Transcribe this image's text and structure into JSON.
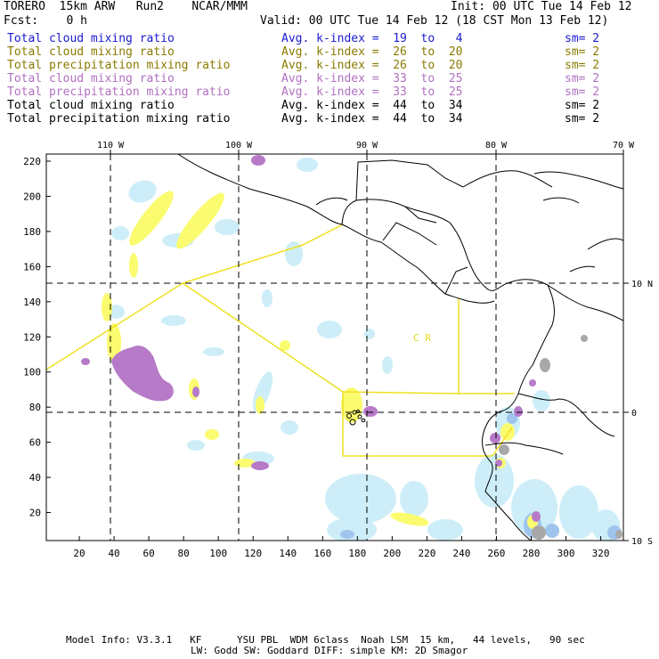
{
  "header": {
    "run_title": "TORERO  15km ARW   Run2    NCAR/MMM",
    "init": "Init: 00 UTC Tue 14 Feb 12",
    "fcst": "Fcst:    0 h",
    "valid": "Valid: 00 UTC Tue 14 Feb 12 (18 CST Mon 13 Feb 12)"
  },
  "legend": [
    {
      "field": "Total cloud mixing ratio",
      "range": "Avg. k-index =  19  to   4",
      "sm": "sm= 2",
      "color": "#1a1ad0"
    },
    {
      "field": "Total cloud mixing ratio",
      "range": "Avg. k-index =  26  to  20",
      "sm": "sm= 2",
      "color": "#8a7a00"
    },
    {
      "field": "Total precipitation mixing ratio",
      "range": "Avg. k-index =  26  to  20",
      "sm": "sm= 2",
      "color": "#8a7a00"
    },
    {
      "field": "Total cloud mixing ratio",
      "range": "Avg. k-index =  33  to  25",
      "sm": "sm= 2",
      "color": "#b070c0"
    },
    {
      "field": "Total precipitation mixing ratio",
      "range": "Avg. k-index =  33  to  25",
      "sm": "sm= 2",
      "color": "#b070c0"
    },
    {
      "field": "Total cloud mixing ratio",
      "range": "Avg. k-index =  44  to  34",
      "sm": "sm= 2",
      "color": "#000000"
    },
    {
      "field": "Total precipitation mixing ratio",
      "range": "Avg. k-index =  44  to  34",
      "sm": "sm= 2",
      "color": "#000000"
    }
  ],
  "map": {
    "top_lon_labels": [
      "110 W",
      "100 W",
      "90 W",
      "80 W",
      "70 W"
    ],
    "right_lat_labels": [
      "10 N",
      "0",
      "10 S"
    ],
    "left_grid_labels": [
      "220",
      "200",
      "180",
      "160",
      "140",
      "120",
      "100",
      "80",
      "60",
      "40",
      "20"
    ],
    "bottom_grid_labels": [
      "20",
      "40",
      "60",
      "80",
      "100",
      "120",
      "140",
      "160",
      "180",
      "200",
      "220",
      "240",
      "260",
      "280",
      "300",
      "320"
    ],
    "region_label": "C R",
    "colors": {
      "light_blue": "#cdeef8",
      "mid_blue": "#9fc4ee",
      "yellow": "#fbfb70",
      "purple": "#b77ac8",
      "gray": "#a8a8a8",
      "domain_line": "#f0e020"
    }
  },
  "footer": {
    "line1": "Model Info: V3.3.1   KF      YSU PBL  WDM 6class  Noah LSM  15 km,   44 levels,   90 sec",
    "line2": "LW: Godd SW: Goddard DIFF: simple KM: 2D Smagor"
  }
}
